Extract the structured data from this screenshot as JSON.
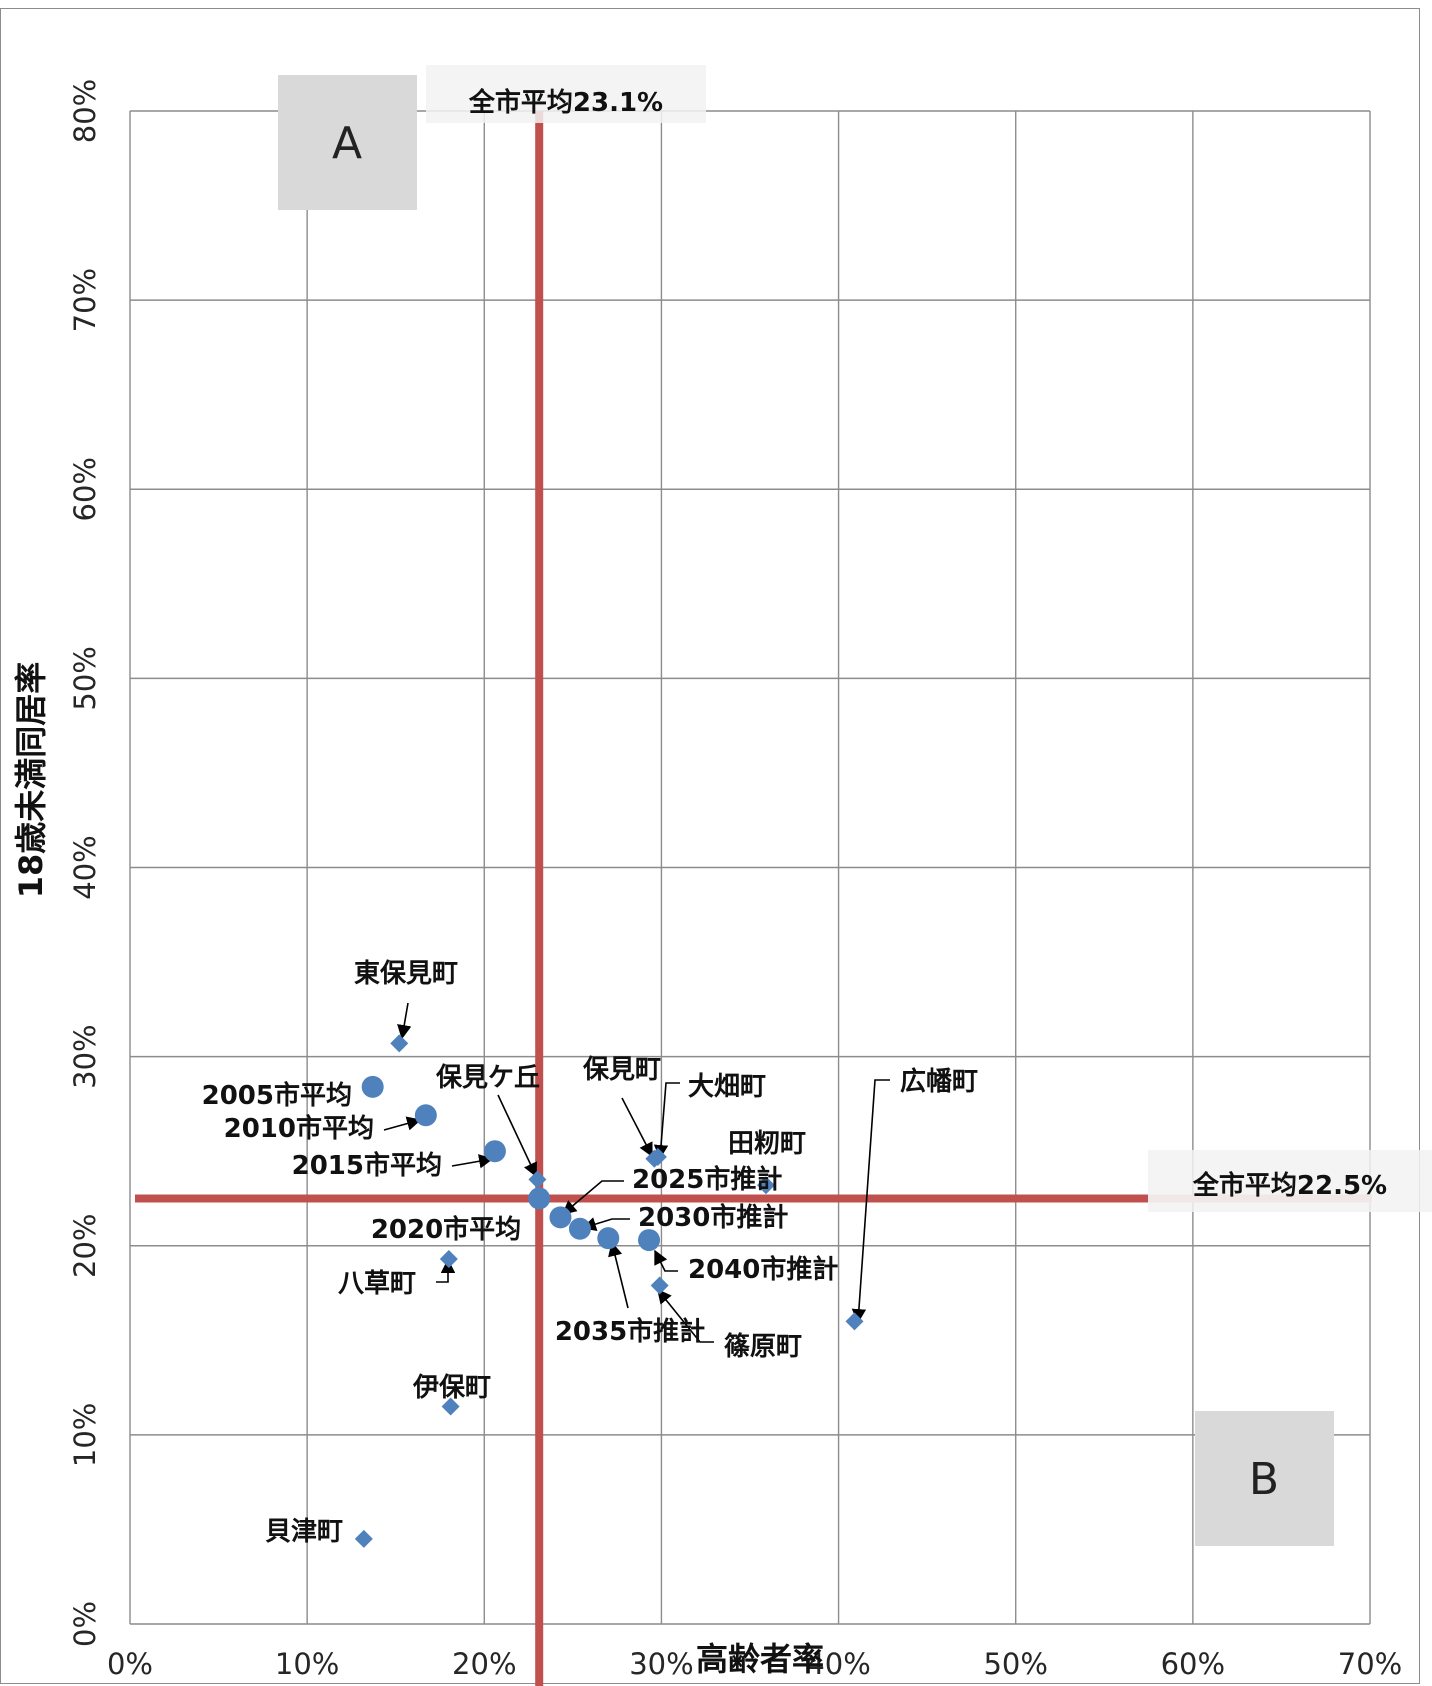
{
  "chart_data": {
    "type": "scatter",
    "xlabel": "高齢者率",
    "ylabel": "18歳未満同居率",
    "xlim": [
      0,
      0.7
    ],
    "ylim": [
      0,
      0.8
    ],
    "x_ticks": [
      "0%",
      "10%",
      "20%",
      "30%",
      "40%",
      "50%",
      "60%",
      "70%"
    ],
    "y_ticks": [
      "0%",
      "10%",
      "20%",
      "30%",
      "40%",
      "50%",
      "60%",
      "70%",
      "80%"
    ],
    "grid": true,
    "reference_lines": [
      {
        "label": "全市平均23.1%",
        "axis": "x",
        "value": 0.231,
        "color": "#c0504d"
      },
      {
        "label": "全市平均22.5%",
        "axis": "y",
        "value": 0.225,
        "color": "#c0504d"
      }
    ],
    "quadrant_labels": [
      "A",
      "B"
    ],
    "series": [
      {
        "marker": "diamond",
        "color": "#4f81bd",
        "points": [
          {
            "label": "東保見町",
            "x": 0.152,
            "y": 0.307
          },
          {
            "label": "保見ケ丘",
            "x": 0.23,
            "y": 0.235
          },
          {
            "label": "保見町",
            "x": 0.296,
            "y": 0.246
          },
          {
            "label": "大畑町",
            "x": 0.298,
            "y": 0.247
          },
          {
            "label": "田籾町",
            "x": 0.359,
            "y": 0.232
          },
          {
            "label": "八草町",
            "x": 0.18,
            "y": 0.193
          },
          {
            "label": "篠原町",
            "x": 0.299,
            "y": 0.179
          },
          {
            "label": "広幡町",
            "x": 0.409,
            "y": 0.16
          },
          {
            "label": "伊保町",
            "x": 0.181,
            "y": 0.115
          },
          {
            "label": "貝津町",
            "x": 0.132,
            "y": 0.045
          }
        ]
      },
      {
        "marker": "circle",
        "color": "#4f81bd",
        "points": [
          {
            "label": "2005市平均",
            "x": 0.137,
            "y": 0.284
          },
          {
            "label": "2010市平均",
            "x": 0.167,
            "y": 0.269
          },
          {
            "label": "2015市平均",
            "x": 0.206,
            "y": 0.25
          },
          {
            "label": "2020市平均",
            "x": 0.231,
            "y": 0.225
          },
          {
            "label": "2025市推計",
            "x": 0.243,
            "y": 0.215
          },
          {
            "label": "2030市推計",
            "x": 0.254,
            "y": 0.209
          },
          {
            "label": "2035市推計",
            "x": 0.27,
            "y": 0.204
          },
          {
            "label": "2040市推計",
            "x": 0.293,
            "y": 0.203
          }
        ]
      }
    ]
  }
}
